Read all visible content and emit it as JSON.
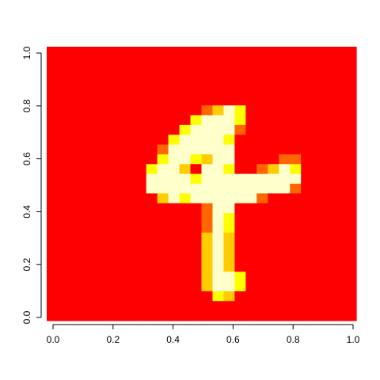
{
  "chart_data": {
    "type": "heatmap",
    "title": "",
    "xlabel": "",
    "ylabel": "",
    "xlim": [
      0,
      1
    ],
    "ylim": [
      0,
      1
    ],
    "grid": false,
    "legend": "none",
    "x_ticks": [
      "0.0",
      "0.2",
      "0.4",
      "0.6",
      "0.8",
      "1.0"
    ],
    "y_ticks": [
      "0.0",
      "0.2",
      "0.4",
      "0.6",
      "0.8",
      "1.0"
    ],
    "rows": 28,
    "cols": 28,
    "palette": [
      "#FF0000",
      "#FF6600",
      "#FFCC00",
      "#FFFF00",
      "#FFFFCC"
    ],
    "values": [
      [
        0,
        0,
        0,
        0,
        0,
        0,
        0,
        0,
        0,
        0,
        0,
        0,
        0,
        0,
        0,
        0,
        0,
        0,
        0,
        0,
        0,
        0,
        0,
        0,
        0,
        0,
        0,
        0
      ],
      [
        0,
        0,
        0,
        0,
        0,
        0,
        0,
        0,
        0,
        0,
        0,
        0,
        0,
        0,
        0,
        0,
        0,
        0,
        0,
        0,
        0,
        0,
        0,
        0,
        0,
        0,
        0,
        0
      ],
      [
        0,
        0,
        0,
        0,
        0,
        0,
        0,
        0,
        0,
        0,
        0,
        0,
        0,
        0,
        0,
        0,
        0,
        0,
        0,
        0,
        0,
        0,
        0,
        0,
        0,
        0,
        0,
        0
      ],
      [
        0,
        0,
        0,
        0,
        0,
        0,
        0,
        0,
        0,
        0,
        0,
        0,
        0,
        0,
        0,
        0,
        0,
        0,
        0,
        0,
        0,
        0,
        0,
        0,
        0,
        0,
        0,
        0
      ],
      [
        0,
        0,
        0,
        0,
        0,
        0,
        0,
        0,
        0,
        0,
        0,
        0,
        0,
        0,
        0,
        0,
        0,
        0,
        0,
        0,
        0,
        0,
        0,
        0,
        0,
        0,
        0,
        0
      ],
      [
        0,
        0,
        0,
        0,
        0,
        0,
        0,
        0,
        0,
        0,
        0,
        0,
        0,
        0,
        0,
        0,
        0,
        0,
        0,
        0,
        0,
        0,
        0,
        0,
        0,
        0,
        0,
        0
      ],
      [
        0,
        0,
        0,
        0,
        0,
        0,
        0,
        0,
        0,
        0,
        0,
        0,
        0,
        0,
        1,
        2,
        4,
        3,
        0,
        0,
        0,
        0,
        0,
        0,
        0,
        0,
        0,
        0
      ],
      [
        0,
        0,
        0,
        0,
        0,
        0,
        0,
        0,
        0,
        0,
        0,
        0,
        0,
        3,
        4,
        4,
        4,
        3,
        0,
        0,
        0,
        0,
        0,
        0,
        0,
        0,
        0,
        0
      ],
      [
        0,
        0,
        0,
        0,
        0,
        0,
        0,
        0,
        0,
        0,
        0,
        0,
        3,
        4,
        4,
        4,
        4,
        1,
        0,
        0,
        0,
        0,
        0,
        0,
        0,
        0,
        0,
        0
      ],
      [
        0,
        0,
        0,
        0,
        0,
        0,
        0,
        0,
        0,
        0,
        0,
        3,
        4,
        4,
        4,
        4,
        3,
        0,
        0,
        0,
        0,
        0,
        0,
        0,
        0,
        0,
        0,
        0
      ],
      [
        0,
        0,
        0,
        0,
        0,
        0,
        0,
        0,
        0,
        0,
        1,
        4,
        4,
        4,
        4,
        4,
        4,
        0,
        0,
        0,
        0,
        0,
        0,
        0,
        0,
        0,
        0,
        0
      ],
      [
        0,
        0,
        0,
        0,
        0,
        0,
        0,
        0,
        0,
        0,
        3,
        4,
        4,
        3,
        2,
        4,
        4,
        0,
        0,
        0,
        0,
        1,
        1,
        0,
        0,
        0,
        0,
        0
      ],
      [
        0,
        0,
        0,
        0,
        0,
        0,
        0,
        0,
        0,
        3,
        4,
        4,
        2,
        0,
        4,
        4,
        3,
        0,
        0,
        1,
        2,
        4,
        3,
        0,
        0,
        0,
        0,
        0
      ],
      [
        0,
        0,
        0,
        0,
        0,
        0,
        0,
        0,
        0,
        4,
        4,
        4,
        4,
        3,
        4,
        4,
        4,
        4,
        4,
        4,
        4,
        4,
        4,
        0,
        0,
        0,
        0,
        0
      ],
      [
        0,
        0,
        0,
        0,
        0,
        0,
        0,
        0,
        0,
        4,
        4,
        4,
        4,
        4,
        4,
        4,
        4,
        4,
        4,
        4,
        4,
        4,
        1,
        0,
        0,
        0,
        0,
        0
      ],
      [
        0,
        0,
        0,
        0,
        0,
        0,
        0,
        0,
        0,
        0,
        2,
        4,
        3,
        4,
        4,
        4,
        4,
        4,
        4,
        1,
        0,
        0,
        0,
        0,
        0,
        0,
        0,
        0
      ],
      [
        0,
        0,
        0,
        0,
        0,
        0,
        0,
        0,
        0,
        0,
        0,
        0,
        0,
        0,
        1,
        4,
        4,
        0,
        0,
        0,
        0,
        0,
        0,
        0,
        0,
        0,
        0,
        0
      ],
      [
        0,
        0,
        0,
        0,
        0,
        0,
        0,
        0,
        0,
        0,
        0,
        0,
        0,
        0,
        1,
        4,
        3,
        0,
        0,
        0,
        0,
        0,
        0,
        0,
        0,
        0,
        0,
        0
      ],
      [
        0,
        0,
        0,
        0,
        0,
        0,
        0,
        0,
        0,
        0,
        0,
        0,
        0,
        0,
        1,
        4,
        3,
        0,
        0,
        0,
        0,
        0,
        0,
        0,
        0,
        0,
        0,
        0
      ],
      [
        0,
        0,
        0,
        0,
        0,
        0,
        0,
        0,
        0,
        0,
        0,
        0,
        0,
        0,
        2,
        4,
        2,
        0,
        0,
        0,
        0,
        0,
        0,
        0,
        0,
        0,
        0,
        0
      ],
      [
        0,
        0,
        0,
        0,
        0,
        0,
        0,
        0,
        0,
        0,
        0,
        0,
        0,
        0,
        2,
        4,
        2,
        0,
        0,
        0,
        0,
        0,
        0,
        0,
        0,
        0,
        0,
        0
      ],
      [
        0,
        0,
        0,
        0,
        0,
        0,
        0,
        0,
        0,
        0,
        0,
        0,
        0,
        0,
        2,
        4,
        2,
        0,
        0,
        0,
        0,
        0,
        0,
        0,
        0,
        0,
        0,
        0
      ],
      [
        0,
        0,
        0,
        0,
        0,
        0,
        0,
        0,
        0,
        0,
        0,
        0,
        0,
        0,
        2,
        4,
        2,
        0,
        0,
        0,
        0,
        0,
        0,
        0,
        0,
        0,
        0,
        0
      ],
      [
        0,
        0,
        0,
        0,
        0,
        0,
        0,
        0,
        0,
        0,
        0,
        0,
        0,
        0,
        2,
        4,
        4,
        3,
        0,
        0,
        0,
        0,
        0,
        0,
        0,
        0,
        0,
        0
      ],
      [
        0,
        0,
        0,
        0,
        0,
        0,
        0,
        0,
        0,
        0,
        0,
        0,
        0,
        0,
        2,
        4,
        4,
        3,
        0,
        0,
        0,
        0,
        0,
        0,
        0,
        0,
        0,
        0
      ],
      [
        0,
        0,
        0,
        0,
        0,
        0,
        0,
        0,
        0,
        0,
        0,
        0,
        0,
        0,
        0,
        3,
        2,
        0,
        0,
        0,
        0,
        0,
        0,
        0,
        0,
        0,
        0,
        0
      ],
      [
        0,
        0,
        0,
        0,
        0,
        0,
        0,
        0,
        0,
        0,
        0,
        0,
        0,
        0,
        0,
        0,
        0,
        0,
        0,
        0,
        0,
        0,
        0,
        0,
        0,
        0,
        0,
        0
      ],
      [
        0,
        0,
        0,
        0,
        0,
        0,
        0,
        0,
        0,
        0,
        0,
        0,
        0,
        0,
        0,
        0,
        0,
        0,
        0,
        0,
        0,
        0,
        0,
        0,
        0,
        0,
        0,
        0
      ]
    ]
  }
}
